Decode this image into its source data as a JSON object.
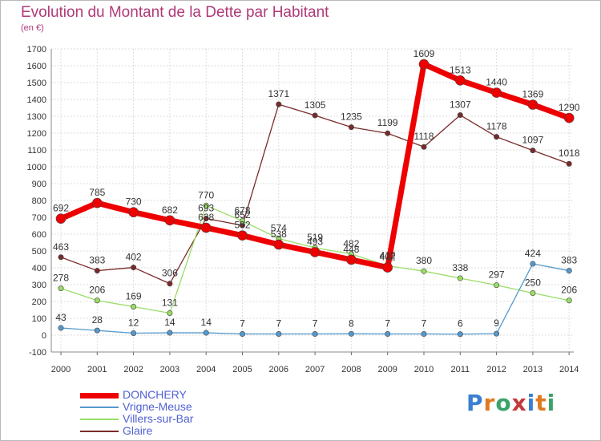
{
  "header": {
    "title": "Evolution du Montant de la Dette par Habitant",
    "unit": "(en €)"
  },
  "logo": {
    "text": "Proxiti"
  },
  "chart_data": {
    "type": "line",
    "title": "Evolution du Montant de la Dette par Habitant",
    "ylabel": "(en €)",
    "xlabel": "",
    "ylim": [
      -100,
      1700
    ],
    "yticks": [
      -100,
      0,
      100,
      200,
      300,
      400,
      500,
      600,
      700,
      800,
      900,
      1000,
      1100,
      1200,
      1300,
      1400,
      1500,
      1600,
      1700
    ],
    "x": [
      "2000",
      "2001",
      "2002",
      "2003",
      "2004",
      "2005",
      "2006",
      "2007",
      "2008",
      "2009",
      "2010",
      "2011",
      "2012",
      "2013",
      "2014"
    ],
    "grid": true,
    "legend_position": "bottom-left",
    "series": [
      {
        "name": "Glaire",
        "color": "#7a2a2a",
        "width": 1.3,
        "marker": 3.2,
        "values": [
          463,
          383,
          402,
          306,
          693,
          652,
          1371,
          1305,
          1235,
          1199,
          1118,
          1307,
          1178,
          1097,
          1018
        ],
        "labels": [
          "463",
          "383",
          "402",
          "306",
          "693",
          "652",
          "1371",
          "1305",
          "1235",
          "1199",
          "1118",
          "1307",
          "1178",
          "1097",
          "1018"
        ]
      },
      {
        "name": "Villers-sur-Bar",
        "color": "#99dd66",
        "width": 1.3,
        "marker": 3.2,
        "values": [
          278,
          206,
          169,
          131,
          770,
          678,
          574,
          519,
          482,
          412,
          380,
          338,
          297,
          250,
          206
        ],
        "labels": [
          "278",
          "206",
          "169",
          "131",
          "770",
          "678",
          "574",
          "519",
          "482",
          "412",
          "380",
          "338",
          "297",
          "250",
          "206"
        ]
      },
      {
        "name": "Vrigne-Meuse",
        "color": "#5599cc",
        "width": 1.3,
        "marker": 3.2,
        "values": [
          43,
          28,
          12,
          14,
          14,
          7,
          7,
          7,
          8,
          7,
          7,
          6,
          9,
          424,
          383
        ],
        "labels": [
          "43",
          "28",
          "12",
          "14",
          "14",
          "7",
          "7",
          "7",
          "8",
          "7",
          "7",
          "6",
          "9",
          "424",
          "383"
        ]
      },
      {
        "name": "DONCHERY",
        "color": "#ee0000",
        "width": 7,
        "marker": 6,
        "segments": [
          [
            0,
            9
          ],
          [
            9,
            14
          ]
        ],
        "values": [
          692,
          785,
          730,
          682,
          638,
          592,
          538,
          493,
          448,
          402,
          1609,
          1513,
          1440,
          1369,
          1290
        ],
        "labels": [
          "692",
          "785",
          "730",
          "682",
          "638",
          "592",
          "538",
          "493",
          "448",
          "402",
          "1609",
          "1513",
          "1440",
          "1369",
          "1290"
        ]
      }
    ]
  },
  "legend_order": [
    "DONCHERY",
    "Vrigne-Meuse",
    "Villers-sur-Bar",
    "Glaire"
  ]
}
